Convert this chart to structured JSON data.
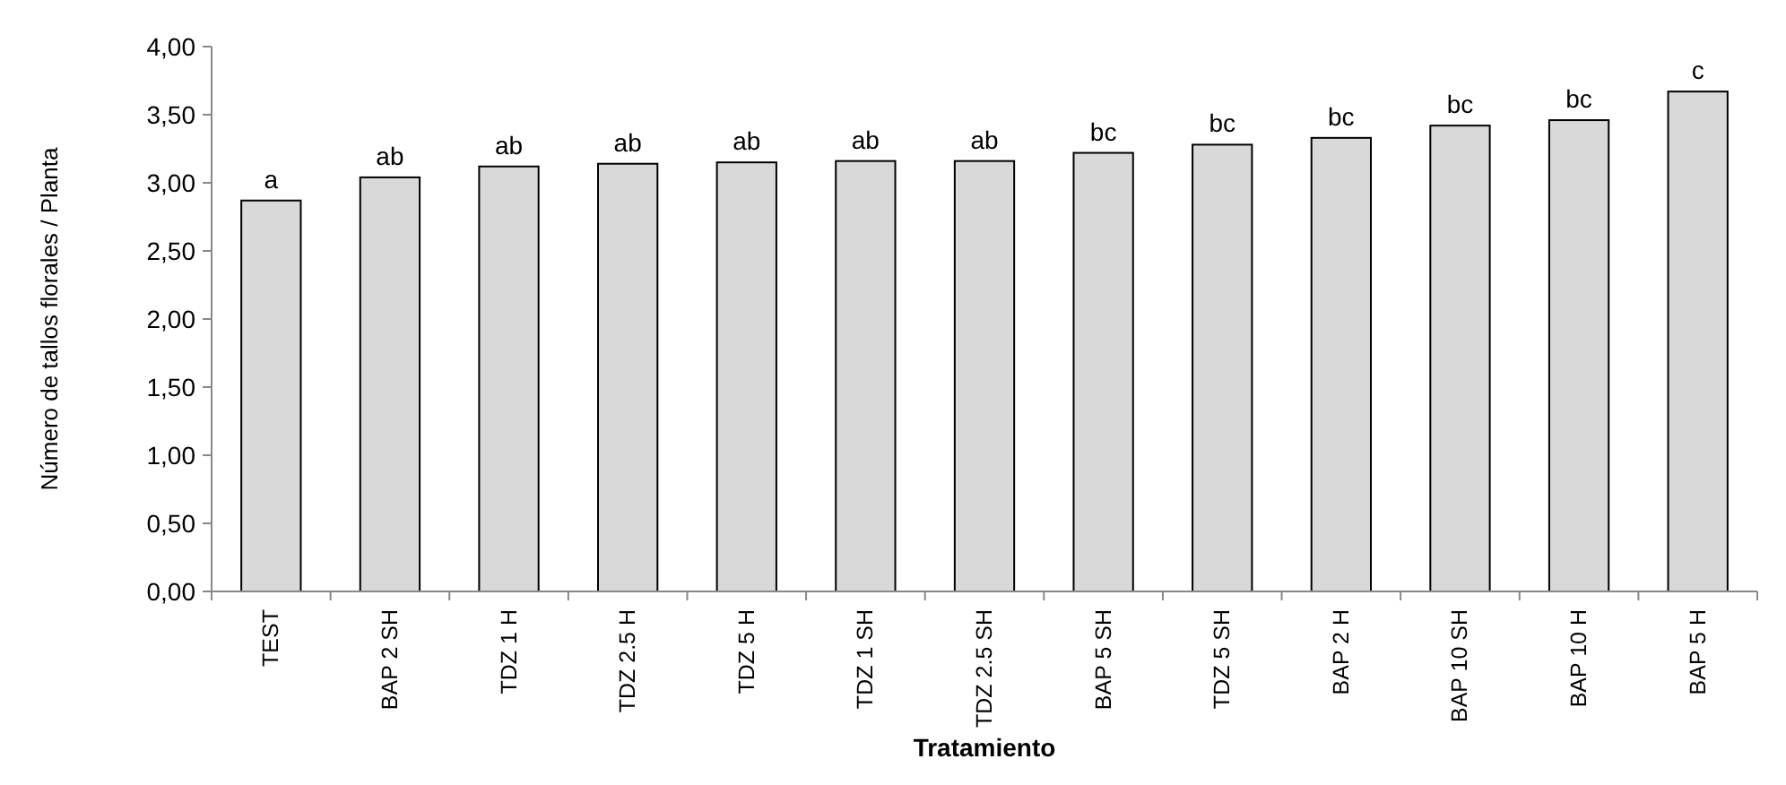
{
  "chart_data": {
    "type": "bar",
    "xlabel": "Tratamiento",
    "ylabel": "Número de tallos florales / Planta",
    "categories": [
      "TEST",
      "BAP 2 SH",
      "TDZ 1 H",
      "TDZ 2.5 H",
      "TDZ 5 H",
      "TDZ 1 SH",
      "TDZ 2.5 SH",
      "BAP 5 SH",
      "TDZ 5 SH",
      "BAP 2 H",
      "BAP 10 SH",
      "BAP 10 H",
      "BAP 5 H"
    ],
    "values": [
      2.87,
      3.04,
      3.12,
      3.14,
      3.15,
      3.16,
      3.16,
      3.22,
      3.28,
      3.33,
      3.42,
      3.46,
      3.67
    ],
    "color": "#d9d9d9",
    "ylim": [
      0,
      4
    ],
    "yticks": [
      {
        "value": 0,
        "label": "0,00"
      },
      {
        "value": 0.5,
        "label": "0,50"
      },
      {
        "value": 1,
        "label": "1,00"
      },
      {
        "value": 1.5,
        "label": "1,50"
      },
      {
        "value": 2,
        "label": "2,00"
      },
      {
        "value": 2.5,
        "label": "2,50"
      },
      {
        "value": 3,
        "label": "3,00"
      },
      {
        "value": 3.5,
        "label": "3,50"
      },
      {
        "value": 4,
        "label": "4,00"
      }
    ],
    "annotations": [
      {
        "text": "a",
        "x": "TEST",
        "y": 2.87
      },
      {
        "text": "ab",
        "x": "BAP 2 SH",
        "y": 3.04
      },
      {
        "text": "ab",
        "x": "TDZ 1 H",
        "y": 3.12
      },
      {
        "text": "ab",
        "x": "TDZ 2.5 H",
        "y": 3.14
      },
      {
        "text": "ab",
        "x": "TDZ 5 H",
        "y": 3.15
      },
      {
        "text": "ab",
        "x": "TDZ 1 SH",
        "y": 3.16
      },
      {
        "text": "ab",
        "x": "TDZ 2.5 SH",
        "y": 3.16
      },
      {
        "text": "bc",
        "x": "BAP 5 SH",
        "y": 3.22
      },
      {
        "text": "bc",
        "x": "TDZ 5 SH",
        "y": 3.28
      },
      {
        "text": "bc",
        "x": "BAP 2 H",
        "y": 3.33
      },
      {
        "text": "bc",
        "x": "BAP 10 SH",
        "y": 3.42
      },
      {
        "text": "bc",
        "x": "BAP 10 H",
        "y": 3.46
      },
      {
        "text": "c",
        "x": "BAP 5 H",
        "y": 3.67
      }
    ]
  }
}
